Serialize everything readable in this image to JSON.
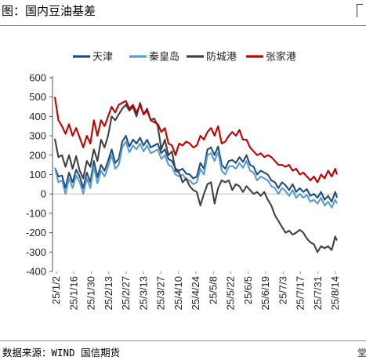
{
  "header": {
    "title": "图：国内豆油基差"
  },
  "footer": {
    "source": "数据来源：WIND 国信期货",
    "page_fragment": "堂"
  },
  "chart_data": {
    "type": "line",
    "title": "图：国内豆油基差",
    "xlabel": "",
    "ylabel": "",
    "ylim": [
      -400,
      600
    ],
    "yticks": [
      600,
      500,
      400,
      300,
      200,
      100,
      0,
      -100,
      -200,
      -300,
      -400
    ],
    "grid": false,
    "legend_position": "top",
    "x_tick_labels": [
      "25/1/2",
      "25/1/16",
      "25/1/30",
      "25/2/13",
      "25/2/27",
      "25/3/13",
      "25/3/27",
      "25/4/10",
      "25/4/24",
      "25/5/8",
      "25/5/22",
      "25/6/5",
      "25/6/19",
      "25/7/3",
      "25/7/17",
      "25/7/31",
      "25/8/14"
    ],
    "num_points": 160,
    "series": [
      {
        "name": "天津",
        "color": "#1f4e79",
        "anchors": [
          [
            0,
            135
          ],
          [
            2,
            90
          ],
          [
            4,
            95
          ],
          [
            6,
            30
          ],
          [
            8,
            110
          ],
          [
            10,
            60
          ],
          [
            12,
            125
          ],
          [
            14,
            90
          ],
          [
            16,
            30
          ],
          [
            18,
            110
          ],
          [
            20,
            60
          ],
          [
            22,
            170
          ],
          [
            24,
            85
          ],
          [
            26,
            150
          ],
          [
            28,
            120
          ],
          [
            30,
            170
          ],
          [
            32,
            230
          ],
          [
            34,
            160
          ],
          [
            36,
            180
          ],
          [
            38,
            270
          ],
          [
            40,
            300
          ],
          [
            42,
            245
          ],
          [
            44,
            280
          ],
          [
            46,
            260
          ],
          [
            48,
            290
          ],
          [
            50,
            250
          ],
          [
            52,
            280
          ],
          [
            54,
            240
          ],
          [
            56,
            250
          ],
          [
            58,
            260
          ],
          [
            60,
            210
          ],
          [
            62,
            230
          ],
          [
            64,
            180
          ],
          [
            66,
            170
          ],
          [
            68,
            130
          ],
          [
            70,
            120
          ],
          [
            72,
            130
          ],
          [
            74,
            105
          ],
          [
            76,
            100
          ],
          [
            78,
            80
          ],
          [
            80,
            90
          ],
          [
            82,
            160
          ],
          [
            84,
            130
          ],
          [
            86,
            230
          ],
          [
            88,
            240
          ],
          [
            90,
            200
          ],
          [
            92,
            245
          ],
          [
            94,
            150
          ],
          [
            96,
            130
          ],
          [
            98,
            170
          ],
          [
            100,
            175
          ],
          [
            102,
            160
          ],
          [
            104,
            190
          ],
          [
            106,
            165
          ],
          [
            108,
            200
          ],
          [
            110,
            150
          ],
          [
            112,
            140
          ],
          [
            114,
            100
          ],
          [
            116,
            120
          ],
          [
            118,
            110
          ],
          [
            120,
            100
          ],
          [
            122,
            70
          ],
          [
            124,
            60
          ],
          [
            126,
            30
          ],
          [
            128,
            60
          ],
          [
            130,
            45
          ],
          [
            132,
            20
          ],
          [
            134,
            50
          ],
          [
            136,
            10
          ],
          [
            138,
            30
          ],
          [
            140,
            10
          ],
          [
            142,
            25
          ],
          [
            144,
            -10
          ],
          [
            146,
            0
          ],
          [
            148,
            -20
          ],
          [
            150,
            10
          ],
          [
            152,
            -30
          ],
          [
            154,
            -10
          ],
          [
            156,
            -40
          ],
          [
            158,
            10
          ],
          [
            159,
            -20
          ]
        ]
      },
      {
        "name": "秦皇岛",
        "color": "#5b9bd5",
        "anchors": [
          [
            0,
            135
          ],
          [
            2,
            60
          ],
          [
            4,
            70
          ],
          [
            6,
            0
          ],
          [
            8,
            80
          ],
          [
            10,
            30
          ],
          [
            12,
            95
          ],
          [
            14,
            60
          ],
          [
            16,
            0
          ],
          [
            18,
            80
          ],
          [
            20,
            30
          ],
          [
            22,
            140
          ],
          [
            24,
            55
          ],
          [
            26,
            120
          ],
          [
            28,
            90
          ],
          [
            30,
            140
          ],
          [
            32,
            200
          ],
          [
            34,
            130
          ],
          [
            36,
            150
          ],
          [
            38,
            240
          ],
          [
            40,
            270
          ],
          [
            42,
            215
          ],
          [
            44,
            250
          ],
          [
            46,
            230
          ],
          [
            48,
            260
          ],
          [
            50,
            220
          ],
          [
            52,
            250
          ],
          [
            54,
            210
          ],
          [
            56,
            220
          ],
          [
            58,
            230
          ],
          [
            60,
            180
          ],
          [
            62,
            200
          ],
          [
            64,
            150
          ],
          [
            66,
            140
          ],
          [
            68,
            100
          ],
          [
            70,
            90
          ],
          [
            72,
            100
          ],
          [
            74,
            75
          ],
          [
            76,
            70
          ],
          [
            78,
            50
          ],
          [
            80,
            60
          ],
          [
            82,
            130
          ],
          [
            84,
            100
          ],
          [
            86,
            200
          ],
          [
            88,
            210
          ],
          [
            90,
            170
          ],
          [
            92,
            215
          ],
          [
            94,
            120
          ],
          [
            96,
            100
          ],
          [
            98,
            140
          ],
          [
            100,
            145
          ],
          [
            102,
            130
          ],
          [
            104,
            160
          ],
          [
            106,
            135
          ],
          [
            108,
            170
          ],
          [
            110,
            120
          ],
          [
            112,
            110
          ],
          [
            114,
            70
          ],
          [
            116,
            90
          ],
          [
            118,
            80
          ],
          [
            120,
            70
          ],
          [
            122,
            40
          ],
          [
            124,
            30
          ],
          [
            126,
            0
          ],
          [
            128,
            30
          ],
          [
            130,
            15
          ],
          [
            132,
            -10
          ],
          [
            134,
            20
          ],
          [
            136,
            -20
          ],
          [
            138,
            0
          ],
          [
            140,
            -20
          ],
          [
            142,
            -5
          ],
          [
            144,
            -40
          ],
          [
            146,
            -30
          ],
          [
            148,
            -50
          ],
          [
            150,
            -20
          ],
          [
            152,
            -60
          ],
          [
            154,
            -40
          ],
          [
            156,
            -70
          ],
          [
            158,
            -30
          ],
          [
            159,
            -50
          ]
        ]
      },
      {
        "name": "防城港",
        "color": "#404040",
        "anchors": [
          [
            0,
            285
          ],
          [
            2,
            190
          ],
          [
            4,
            200
          ],
          [
            6,
            140
          ],
          [
            8,
            200
          ],
          [
            10,
            130
          ],
          [
            12,
            195
          ],
          [
            14,
            120
          ],
          [
            16,
            80
          ],
          [
            18,
            170
          ],
          [
            20,
            140
          ],
          [
            22,
            230
          ],
          [
            24,
            170
          ],
          [
            26,
            280
          ],
          [
            28,
            240
          ],
          [
            30,
            300
          ],
          [
            32,
            400
          ],
          [
            34,
            380
          ],
          [
            36,
            410
          ],
          [
            38,
            440
          ],
          [
            40,
            460
          ],
          [
            42,
            430
          ],
          [
            44,
            450
          ],
          [
            46,
            400
          ],
          [
            48,
            470
          ],
          [
            50,
            410
          ],
          [
            52,
            440
          ],
          [
            54,
            380
          ],
          [
            56,
            390
          ],
          [
            58,
            350
          ],
          [
            60,
            230
          ],
          [
            62,
            280
          ],
          [
            64,
            200
          ],
          [
            66,
            220
          ],
          [
            68,
            120
          ],
          [
            70,
            110
          ],
          [
            72,
            60
          ],
          [
            74,
            80
          ],
          [
            76,
            40
          ],
          [
            78,
            20
          ],
          [
            80,
            10
          ],
          [
            82,
            -60
          ],
          [
            84,
            0
          ],
          [
            86,
            50
          ],
          [
            88,
            60
          ],
          [
            90,
            -50
          ],
          [
            92,
            30
          ],
          [
            94,
            70
          ],
          [
            96,
            60
          ],
          [
            98,
            70
          ],
          [
            100,
            20
          ],
          [
            102,
            50
          ],
          [
            104,
            40
          ],
          [
            106,
            10
          ],
          [
            108,
            40
          ],
          [
            110,
            20
          ],
          [
            112,
            0
          ],
          [
            114,
            10
          ],
          [
            116,
            -10
          ],
          [
            118,
            10
          ],
          [
            120,
            -30
          ],
          [
            122,
            -60
          ],
          [
            124,
            -110
          ],
          [
            126,
            -140
          ],
          [
            128,
            -170
          ],
          [
            130,
            -200
          ],
          [
            132,
            -190
          ],
          [
            134,
            -210
          ],
          [
            136,
            -200
          ],
          [
            138,
            -185
          ],
          [
            140,
            -200
          ],
          [
            142,
            -230
          ],
          [
            144,
            -250
          ],
          [
            146,
            -260
          ],
          [
            148,
            -300
          ],
          [
            150,
            -270
          ],
          [
            152,
            -280
          ],
          [
            154,
            -270
          ],
          [
            156,
            -290
          ],
          [
            158,
            -220
          ],
          [
            159,
            -240
          ]
        ]
      },
      {
        "name": "张家港",
        "color": "#c00000",
        "anchors": [
          [
            0,
            500
          ],
          [
            2,
            380
          ],
          [
            4,
            350
          ],
          [
            6,
            310
          ],
          [
            8,
            360
          ],
          [
            10,
            300
          ],
          [
            12,
            340
          ],
          [
            14,
            290
          ],
          [
            16,
            240
          ],
          [
            18,
            300
          ],
          [
            20,
            260
          ],
          [
            22,
            380
          ],
          [
            24,
            300
          ],
          [
            26,
            380
          ],
          [
            28,
            350
          ],
          [
            30,
            400
          ],
          [
            32,
            450
          ],
          [
            34,
            420
          ],
          [
            36,
            460
          ],
          [
            38,
            470
          ],
          [
            40,
            480
          ],
          [
            42,
            440
          ],
          [
            44,
            460
          ],
          [
            46,
            420
          ],
          [
            48,
            460
          ],
          [
            50,
            410
          ],
          [
            52,
            430
          ],
          [
            54,
            380
          ],
          [
            56,
            370
          ],
          [
            58,
            360
          ],
          [
            60,
            320
          ],
          [
            62,
            340
          ],
          [
            64,
            260
          ],
          [
            66,
            250
          ],
          [
            68,
            200
          ],
          [
            70,
            260
          ],
          [
            72,
            250
          ],
          [
            74,
            270
          ],
          [
            76,
            260
          ],
          [
            78,
            240
          ],
          [
            80,
            250
          ],
          [
            82,
            300
          ],
          [
            84,
            280
          ],
          [
            86,
            320
          ],
          [
            88,
            340
          ],
          [
            90,
            300
          ],
          [
            92,
            350
          ],
          [
            94,
            260
          ],
          [
            96,
            270
          ],
          [
            98,
            300
          ],
          [
            100,
            320
          ],
          [
            102,
            300
          ],
          [
            104,
            330
          ],
          [
            106,
            280
          ],
          [
            108,
            280
          ],
          [
            110,
            240
          ],
          [
            112,
            220
          ],
          [
            114,
            200
          ],
          [
            116,
            210
          ],
          [
            118,
            190
          ],
          [
            120,
            200
          ],
          [
            122,
            190
          ],
          [
            124,
            170
          ],
          [
            126,
            150
          ],
          [
            128,
            150
          ],
          [
            130,
            140
          ],
          [
            132,
            150
          ],
          [
            134,
            120
          ],
          [
            136,
            130
          ],
          [
            138,
            100
          ],
          [
            140,
            110
          ],
          [
            142,
            90
          ],
          [
            144,
            70
          ],
          [
            146,
            90
          ],
          [
            148,
            60
          ],
          [
            150,
            100
          ],
          [
            152,
            80
          ],
          [
            154,
            120
          ],
          [
            156,
            90
          ],
          [
            158,
            130
          ],
          [
            159,
            100
          ]
        ]
      }
    ]
  }
}
